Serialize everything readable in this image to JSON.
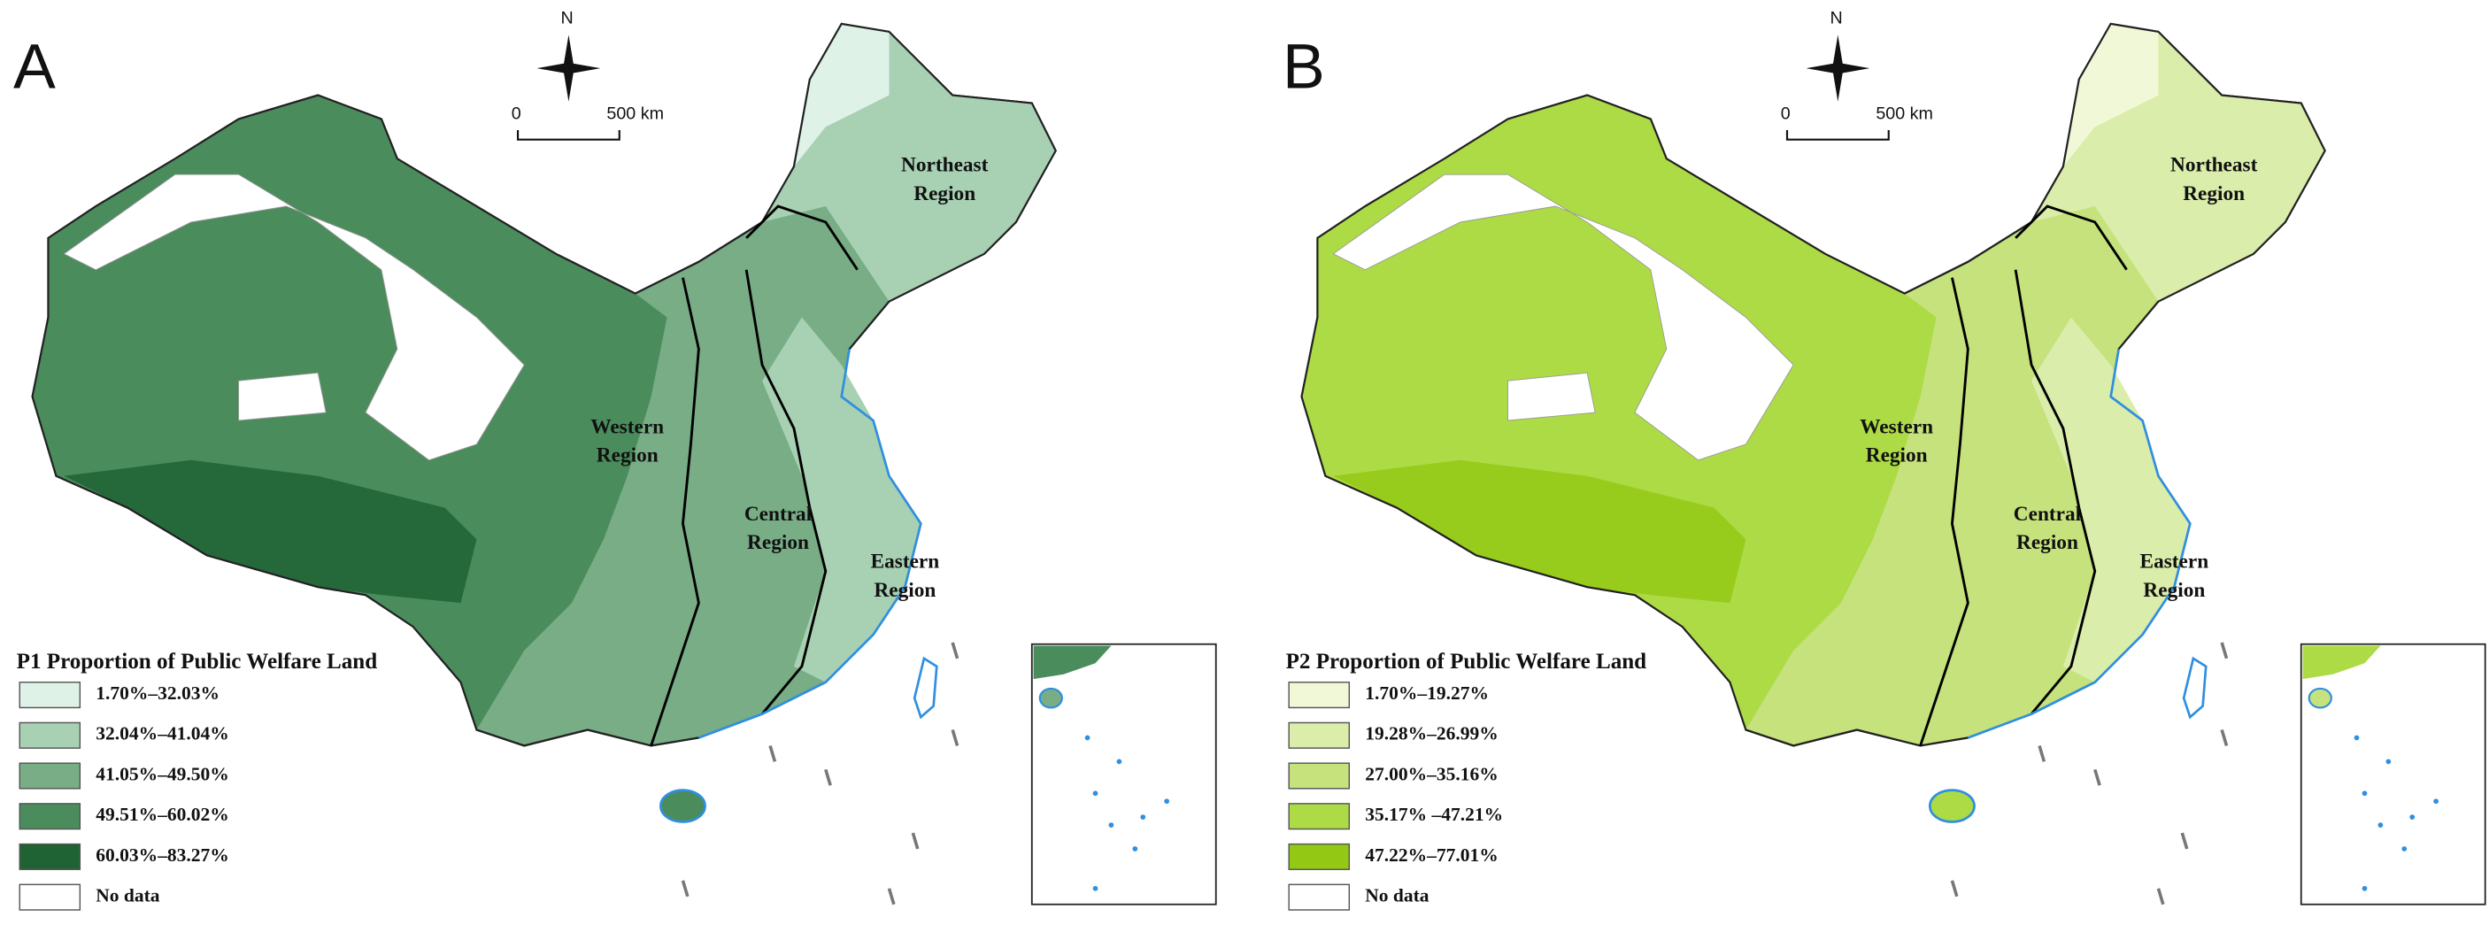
{
  "panels": [
    {
      "letter": "A",
      "north": "N",
      "scale": {
        "start": "0",
        "end": "500 km"
      },
      "regions": [
        [
          "Northeast",
          "Region"
        ],
        [
          "Western",
          "Region"
        ],
        [
          "Central",
          "Region"
        ],
        [
          "Eastern",
          "Region"
        ]
      ],
      "legend": {
        "title": "P1 Proportion of Public Welfare Land",
        "items": [
          {
            "label": "1.70%–32.03%",
            "color": "#dff2e8"
          },
          {
            "label": "32.04%–41.04%",
            "color": "#a8d1b4"
          },
          {
            "label": "41.05%–49.50%",
            "color": "#78ad86"
          },
          {
            "label": "49.51%–60.02%",
            "color": "#4a8c5c"
          },
          {
            "label": "60.03%–83.27%",
            "color": "#1f6334"
          },
          {
            "label": "No data",
            "color": "#ffffff"
          }
        ]
      }
    },
    {
      "letter": "B",
      "north": "N",
      "scale": {
        "start": "0",
        "end": "500 km"
      },
      "regions": [
        [
          "Northeast",
          "Region"
        ],
        [
          "Western",
          "Region"
        ],
        [
          "Central",
          "Region"
        ],
        [
          "Eastern",
          "Region"
        ]
      ],
      "legend": {
        "title": "P2 Proportion of Public Welfare Land",
        "items": [
          {
            "label": "1.70%–19.27%",
            "color": "#f1f8d8"
          },
          {
            "label": "19.28%–26.99%",
            "color": "#dbedaa"
          },
          {
            "label": "27.00%–35.16%",
            "color": "#c5e27c"
          },
          {
            "label": "35.17% –47.21%",
            "color": "#addb45"
          },
          {
            "label": "47.22%–77.01%",
            "color": "#93c815"
          },
          {
            "label": "No data",
            "color": "#ffffff"
          }
        ]
      }
    }
  ]
}
